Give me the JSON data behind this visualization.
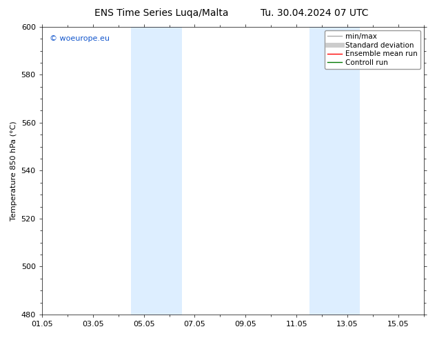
{
  "title_left": "ENS Time Series Luqa/Malta",
  "title_right": "Tu. 30.04.2024 07 UTC",
  "ylabel": "Temperature 850 hPa (°C)",
  "ylim": [
    480,
    600
  ],
  "yticks": [
    480,
    500,
    520,
    540,
    560,
    580,
    600
  ],
  "total_days": 15,
  "xlim": [
    0,
    15
  ],
  "xtick_labels": [
    "01.05",
    "03.05",
    "05.05",
    "07.05",
    "09.05",
    "11.05",
    "13.05",
    "15.05"
  ],
  "xtick_positions_days": [
    0,
    2,
    4,
    6,
    8,
    10,
    12,
    14
  ],
  "shaded_bands": [
    {
      "xstart_day": 3.0,
      "xend_day": 3.5
    },
    {
      "xstart_day": 3.5,
      "xend_day": 5.5
    },
    {
      "xstart_day": 10.0,
      "xend_day": 10.5
    },
    {
      "xstart_day": 10.5,
      "xend_day": 12.5
    }
  ],
  "shaded_bands_v2": [
    {
      "xstart_day": 3.5,
      "xend_day": 5.5
    },
    {
      "xstart_day": 10.5,
      "xend_day": 12.5
    }
  ],
  "shaded_color": "#ddeeff",
  "background_color": "#ffffff",
  "watermark_text": "© woeurope.eu",
  "watermark_color": "#1155cc",
  "legend_entries": [
    {
      "label": "min/max",
      "color": "#aaaaaa",
      "lw": 1.0
    },
    {
      "label": "Standard deviation",
      "color": "#cccccc",
      "lw": 5
    },
    {
      "label": "Ensemble mean run",
      "color": "#ff0000",
      "lw": 1.0
    },
    {
      "label": "Controll run",
      "color": "#007700",
      "lw": 1.0
    }
  ],
  "font_size_title": 10,
  "font_size_axis": 8,
  "font_size_legend": 7.5,
  "font_size_watermark": 8,
  "fig_width": 6.34,
  "fig_height": 4.9,
  "dpi": 100
}
